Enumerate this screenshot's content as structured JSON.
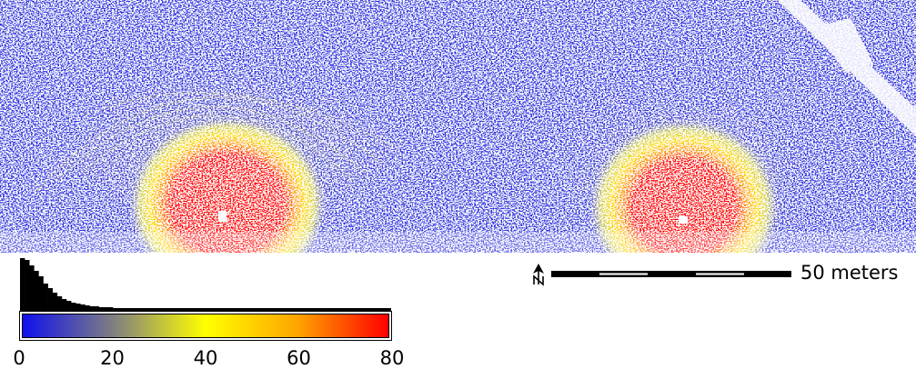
{
  "map": {
    "colors": {
      "low": "#1010ee",
      "mid": "#ffff00",
      "high": "#ff0000",
      "nodata": "#ffffff"
    },
    "hotspot_count": 2
  },
  "legend": {
    "colorbar_stops": [
      "#1010ee",
      "#808080",
      "#ffff00",
      "#ffa500",
      "#ff0000"
    ],
    "ticks": [
      "0",
      "20",
      "40",
      "60",
      "80"
    ],
    "tick_values": [
      0,
      20,
      40,
      60,
      80
    ],
    "range": [
      0,
      80
    ],
    "histogram_counts": [
      58,
      56,
      50,
      44,
      38,
      30,
      25,
      20,
      16,
      13,
      11,
      9,
      8,
      7,
      6,
      5,
      5,
      4,
      4,
      4,
      3,
      3,
      3,
      3,
      3,
      3,
      3,
      3,
      3,
      3,
      3,
      3,
      3,
      3,
      3,
      3,
      3,
      3,
      3,
      3,
      3,
      3,
      3,
      3,
      3,
      3,
      3,
      3,
      3,
      3,
      3,
      3,
      3,
      3,
      3,
      3,
      3,
      3,
      3,
      3,
      3,
      3,
      3,
      3,
      3,
      3,
      3,
      3,
      3,
      3,
      3,
      3,
      3,
      3,
      3,
      3,
      3,
      3,
      3,
      3
    ]
  },
  "scale": {
    "label": "50 meters",
    "north_icon": "north-arrow-icon"
  }
}
